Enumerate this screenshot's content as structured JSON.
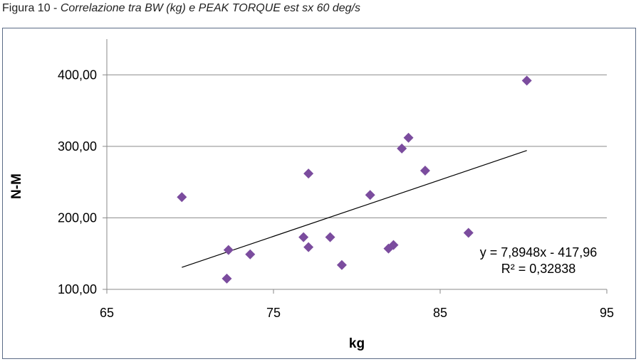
{
  "caption": {
    "prefix": "Figura 10 - ",
    "title": "Correlazione tra BW (kg) e PEAK TORQUE est sx 60 deg/s"
  },
  "chart_data": {
    "type": "scatter",
    "xlabel": "kg",
    "ylabel": "N-M",
    "xlim": [
      65,
      95
    ],
    "ylim": [
      100,
      450
    ],
    "x_ticks": [
      {
        "value": 65,
        "label": "65"
      },
      {
        "value": 75,
        "label": "75"
      },
      {
        "value": 85,
        "label": "85"
      },
      {
        "value": 95,
        "label": "95"
      }
    ],
    "y_ticks": [
      {
        "value": 100,
        "label": "100,00"
      },
      {
        "value": 200,
        "label": "200,00"
      },
      {
        "value": 300,
        "label": "300,00"
      },
      {
        "value": 400,
        "label": "400,00"
      }
    ],
    "grid": "horizontal",
    "marker_color": "#7b4c9e",
    "points": [
      {
        "x": 69.5,
        "y": 229
      },
      {
        "x": 72.3,
        "y": 155
      },
      {
        "x": 72.2,
        "y": 115
      },
      {
        "x": 73.6,
        "y": 149
      },
      {
        "x": 76.8,
        "y": 173
      },
      {
        "x": 77.1,
        "y": 262
      },
      {
        "x": 77.1,
        "y": 159
      },
      {
        "x": 78.4,
        "y": 173
      },
      {
        "x": 79.1,
        "y": 134
      },
      {
        "x": 80.8,
        "y": 232
      },
      {
        "x": 81.9,
        "y": 157
      },
      {
        "x": 82.2,
        "y": 162
      },
      {
        "x": 82.7,
        "y": 297
      },
      {
        "x": 83.1,
        "y": 312
      },
      {
        "x": 84.1,
        "y": 266
      },
      {
        "x": 86.7,
        "y": 179
      },
      {
        "x": 90.2,
        "y": 392
      }
    ],
    "trendline": {
      "slope": 7.8948,
      "intercept": -417.96,
      "x_range": [
        69.5,
        90.2
      ],
      "equation": "y = 7,8948x - 417,96",
      "r2": "R² = 0,32838"
    }
  }
}
